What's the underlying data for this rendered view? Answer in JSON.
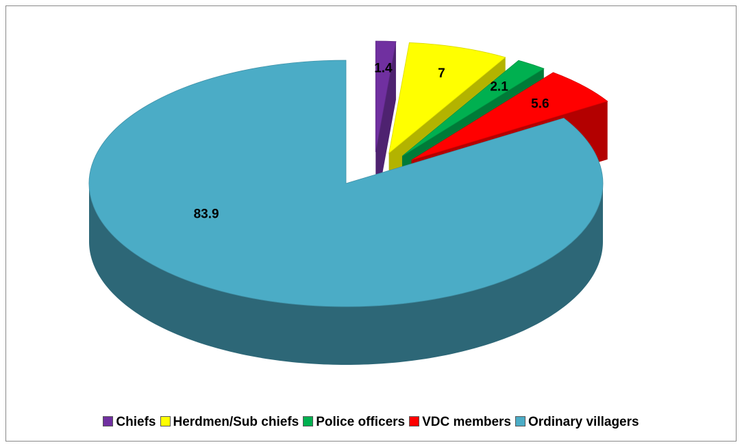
{
  "chart_data": {
    "type": "pie3d",
    "categories": [
      "Chiefs",
      "Herdmen/Sub chiefs",
      "Police officers",
      "VDC members",
      "Ordinary villagers"
    ],
    "values": [
      1.4,
      7,
      2.1,
      5.6,
      83.9
    ],
    "colors": [
      "#7030a0",
      "#ffff00",
      "#00b050",
      "#ff0000",
      "#4bacc6"
    ],
    "legend": "bottom"
  }
}
